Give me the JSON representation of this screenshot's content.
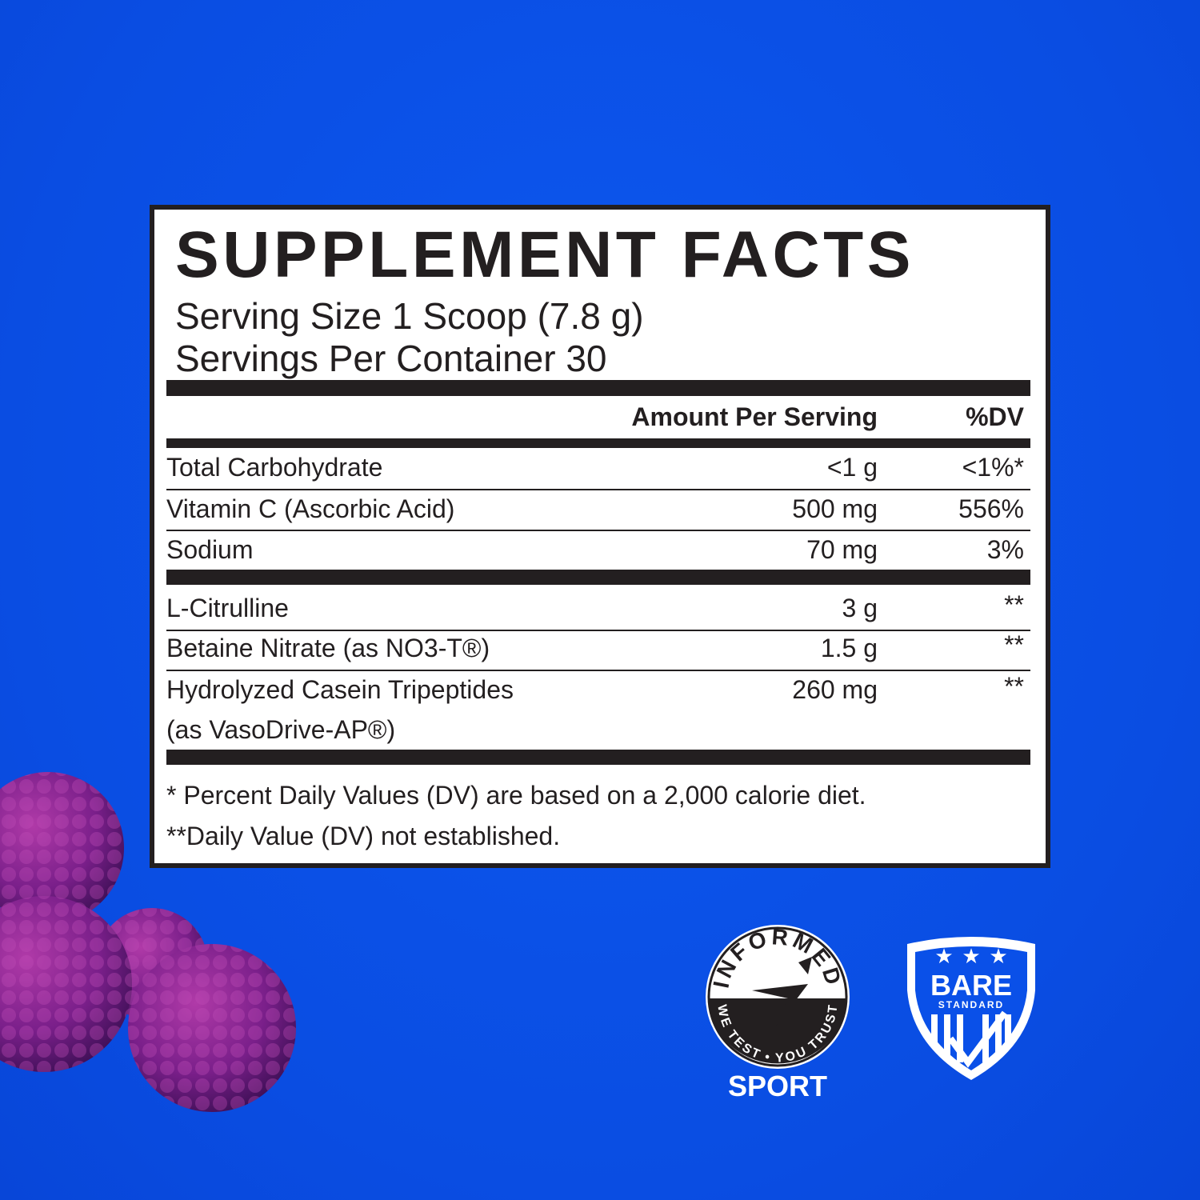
{
  "label": {
    "title": "SUPPLEMENT FACTS",
    "serving_size": "Serving Size 1 Scoop (7.8 g)",
    "servings_per_container": "Servings Per Container 30",
    "header": {
      "amount": "Amount Per Serving",
      "dv": "%DV"
    },
    "rows": [
      {
        "name": "Total Carbohydrate",
        "amount": "<1 g",
        "dv": "<1%*"
      },
      {
        "name": "Vitamin C (Ascorbic Acid)",
        "amount": "500 mg",
        "dv": "556%"
      },
      {
        "name": "Sodium",
        "amount": "70 mg",
        "dv": "3%"
      },
      {
        "name": "L-Citrulline",
        "amount": "3 g",
        "dv": "**"
      },
      {
        "name": "Betaine Nitrate (as NO3-T®)",
        "amount": "1.5 g",
        "dv": "**"
      },
      {
        "name": "Hydrolyzed Casein Tripeptides",
        "name_line2": "(as VasoDrive-AP®)",
        "amount": "260 mg",
        "dv": "**"
      }
    ],
    "footnotes": [
      "* Percent Daily Values (DV) are based on a 2,000 calorie diet.",
      "**Daily Value (DV) not established."
    ]
  },
  "badges": {
    "informed": {
      "top": "INFORMED",
      "bottom": "WE TEST • YOU TRUST",
      "caption": "SPORT"
    },
    "bare": {
      "title": "BARE",
      "subtitle": "STANDARD"
    }
  },
  "colors": {
    "background": "#0a50e8",
    "ink": "#231f20",
    "berry": "#7a1f8a"
  }
}
